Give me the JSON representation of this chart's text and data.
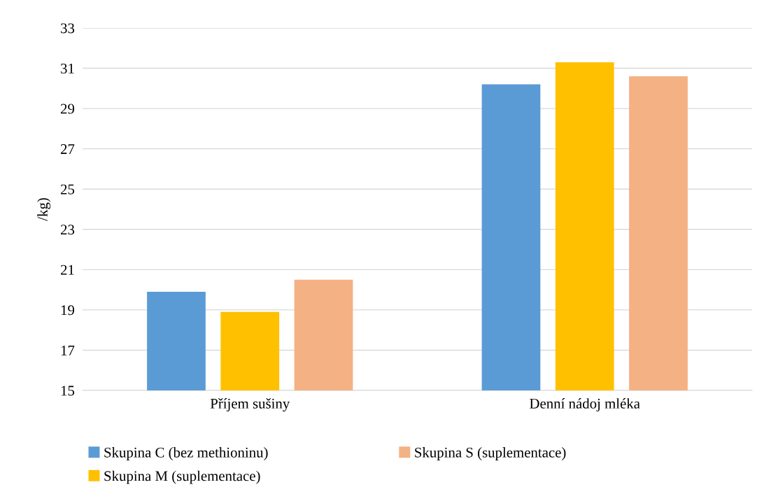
{
  "chart_data": {
    "type": "bar",
    "ylabel": "/kg)",
    "categories": [
      "Příjem sušiny",
      "Denní nádoj mléka"
    ],
    "series": [
      {
        "name": "Skupina C (bez methioninu)",
        "color": "#5b9bd5",
        "values": [
          19.9,
          30.2
        ]
      },
      {
        "name": "Skupina M (suplementace)",
        "color": "#ffc000",
        "values": [
          18.9,
          31.3
        ]
      },
      {
        "name": "Skupina S (suplementace)",
        "color": "#f4b183",
        "values": [
          20.5,
          30.6
        ]
      }
    ],
    "ylim": [
      15,
      33
    ],
    "yticks": [
      15,
      17,
      19,
      21,
      23,
      25,
      27,
      29,
      31,
      33
    ],
    "grid": "y",
    "legend": "bottom"
  }
}
